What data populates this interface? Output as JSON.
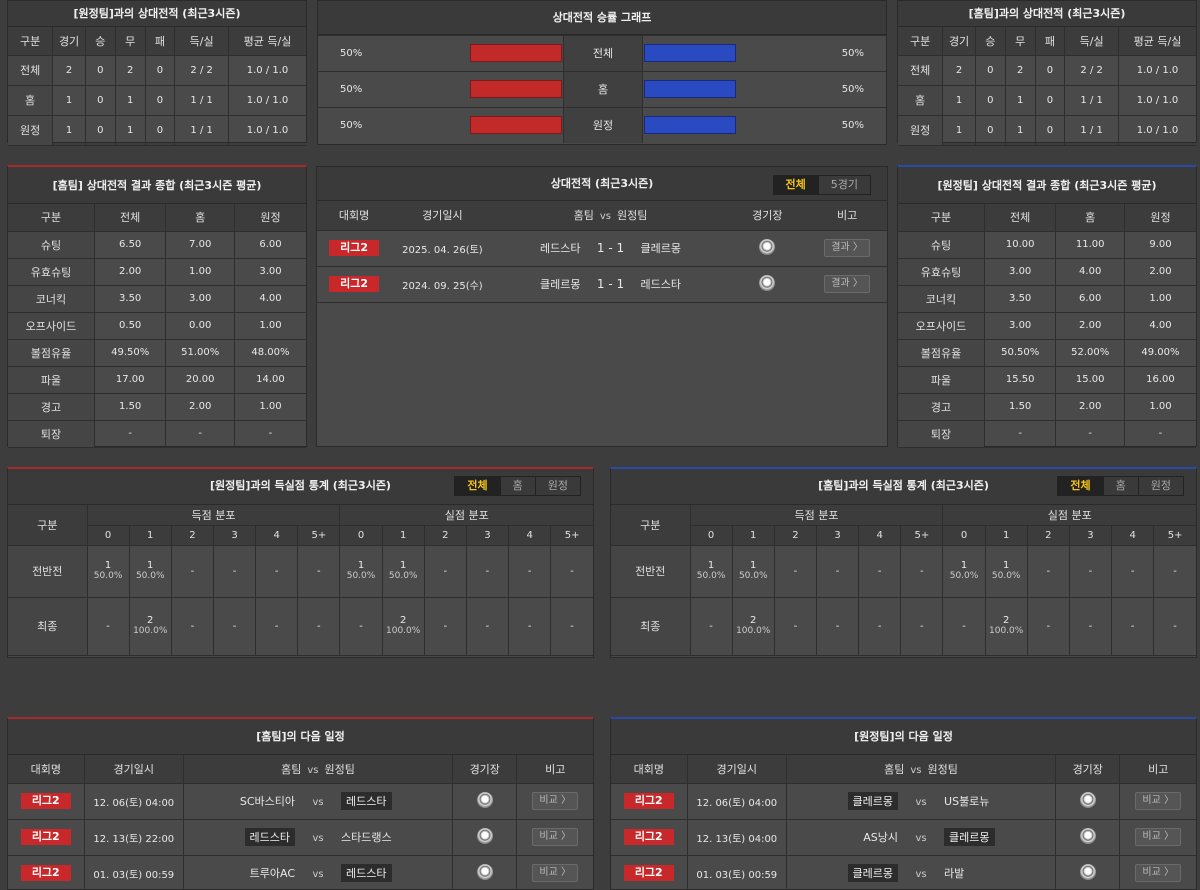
{
  "away_h2h": {
    "title": "[원정팀]과의 상대전적 (최근3시즌)",
    "headers": [
      "구분",
      "경기",
      "승",
      "무",
      "패",
      "득/실",
      "평균 득/실"
    ],
    "rows": [
      [
        "전체",
        "2",
        "0",
        "2",
        "0",
        "2 / 2",
        "1.0 / 1.0"
      ],
      [
        "홈",
        "1",
        "0",
        "1",
        "0",
        "1 / 1",
        "1.0 / 1.0"
      ],
      [
        "원정",
        "1",
        "0",
        "1",
        "0",
        "1 / 1",
        "1.0 / 1.0"
      ]
    ]
  },
  "graph": {
    "title": "상대전적 승률 그래프",
    "rows": [
      {
        "label": "전체",
        "left": "50%",
        "right": "50%",
        "left_value": 50,
        "right_value": 50
      },
      {
        "label": "홈",
        "left": "50%",
        "right": "50%",
        "left_value": 50,
        "right_value": 50
      },
      {
        "label": "원정",
        "left": "50%",
        "right": "50%",
        "left_value": 50,
        "right_value": 50
      }
    ]
  },
  "home_h2h": {
    "title": "[홈팀]과의 상대전적 (최근3시즌)",
    "headers": [
      "구분",
      "경기",
      "승",
      "무",
      "패",
      "득/실",
      "평균 득/실"
    ],
    "rows": [
      [
        "전체",
        "2",
        "0",
        "2",
        "0",
        "2 / 2",
        "1.0 / 1.0"
      ],
      [
        "홈",
        "1",
        "0",
        "1",
        "0",
        "1 / 1",
        "1.0 / 1.0"
      ],
      [
        "원정",
        "1",
        "0",
        "1",
        "0",
        "1 / 1",
        "1.0 / 1.0"
      ]
    ]
  },
  "home_summary": {
    "title": "[홈팀] 상대전적 결과 종합 (최근3시즌 평균)",
    "headers": [
      "구분",
      "전체",
      "홈",
      "원정"
    ],
    "rows": [
      [
        "슈팅",
        "6.50",
        "7.00",
        "6.00"
      ],
      [
        "유효슈팅",
        "2.00",
        "1.00",
        "3.00"
      ],
      [
        "코너킥",
        "3.50",
        "3.00",
        "4.00"
      ],
      [
        "오프사이드",
        "0.50",
        "0.00",
        "1.00"
      ],
      [
        "볼점유율",
        "49.50%",
        "51.00%",
        "48.00%"
      ],
      [
        "파울",
        "17.00",
        "20.00",
        "14.00"
      ],
      [
        "경고",
        "1.50",
        "2.00",
        "1.00"
      ],
      [
        "퇴장",
        "-",
        "-",
        "-"
      ]
    ]
  },
  "h2h_matches": {
    "title": "상대전적 (최근3시즌)",
    "tabs": [
      "전체",
      "5경기"
    ],
    "headers": {
      "league": "대회명",
      "date": "경기일시",
      "home": "홈팀",
      "vs": "vs",
      "away": "원정팀",
      "stadium": "경기장",
      "note": "비고"
    },
    "rows": [
      {
        "league": "리그2",
        "date": "2025. 04. 26(토)",
        "home": "레드스타",
        "score": "1 - 1",
        "away": "클레르몽",
        "btn": "결과 〉"
      },
      {
        "league": "리그2",
        "date": "2024. 09. 25(수)",
        "home": "클레르몽",
        "score": "1 - 1",
        "away": "레드스타",
        "btn": "결과 〉"
      }
    ]
  },
  "away_summary": {
    "title": "[원정팀] 상대전적 결과 종합 (최근3시즌 평균)",
    "headers": [
      "구분",
      "전체",
      "홈",
      "원정"
    ],
    "rows": [
      [
        "슈팅",
        "10.00",
        "11.00",
        "9.00"
      ],
      [
        "유효슈팅",
        "3.00",
        "4.00",
        "2.00"
      ],
      [
        "코너킥",
        "3.50",
        "6.00",
        "1.00"
      ],
      [
        "오프사이드",
        "3.00",
        "2.00",
        "4.00"
      ],
      [
        "볼점유율",
        "50.50%",
        "52.00%",
        "49.00%"
      ],
      [
        "파울",
        "15.50",
        "15.00",
        "16.00"
      ],
      [
        "경고",
        "1.50",
        "2.00",
        "1.00"
      ],
      [
        "퇴장",
        "-",
        "-",
        "-"
      ]
    ]
  },
  "left_goals": {
    "title": "[원정팀]과의 득실점 통계 (최근3시즌)",
    "tabs": [
      "전체",
      "홈",
      "원정"
    ],
    "label": "구분",
    "scored": "득점 분포",
    "conceded": "실점 분포",
    "cols": [
      "0",
      "1",
      "2",
      "3",
      "4",
      "5+"
    ],
    "rows": [
      {
        "label": "전반전",
        "scored": [
          [
            "1",
            "50.0%"
          ],
          [
            "1",
            "50.0%"
          ],
          [
            "-",
            ""
          ],
          [
            "-",
            ""
          ],
          [
            "-",
            ""
          ],
          [
            "-",
            ""
          ]
        ],
        "conceded": [
          [
            "1",
            "50.0%"
          ],
          [
            "1",
            "50.0%"
          ],
          [
            "-",
            ""
          ],
          [
            "-",
            ""
          ],
          [
            "-",
            ""
          ],
          [
            "-",
            ""
          ]
        ]
      },
      {
        "label": "최종",
        "scored": [
          [
            "-",
            ""
          ],
          [
            "2",
            "100.0%"
          ],
          [
            "-",
            ""
          ],
          [
            "-",
            ""
          ],
          [
            "-",
            ""
          ],
          [
            "-",
            ""
          ]
        ],
        "conceded": [
          [
            "-",
            ""
          ],
          [
            "2",
            "100.0%"
          ],
          [
            "-",
            ""
          ],
          [
            "-",
            ""
          ],
          [
            "-",
            ""
          ],
          [
            "-",
            ""
          ]
        ]
      }
    ]
  },
  "right_goals": {
    "title": "[홈팀]과의 득실점 통계 (최근3시즌)",
    "tabs": [
      "전체",
      "홈",
      "원정"
    ],
    "label": "구분",
    "scored": "득점 분포",
    "conceded": "실점 분포",
    "cols": [
      "0",
      "1",
      "2",
      "3",
      "4",
      "5+"
    ],
    "rows": [
      {
        "label": "전반전",
        "scored": [
          [
            "1",
            "50.0%"
          ],
          [
            "1",
            "50.0%"
          ],
          [
            "-",
            ""
          ],
          [
            "-",
            ""
          ],
          [
            "-",
            ""
          ],
          [
            "-",
            ""
          ]
        ],
        "conceded": [
          [
            "1",
            "50.0%"
          ],
          [
            "1",
            "50.0%"
          ],
          [
            "-",
            ""
          ],
          [
            "-",
            ""
          ],
          [
            "-",
            ""
          ],
          [
            "-",
            ""
          ]
        ]
      },
      {
        "label": "최종",
        "scored": [
          [
            "-",
            ""
          ],
          [
            "2",
            "100.0%"
          ],
          [
            "-",
            ""
          ],
          [
            "-",
            ""
          ],
          [
            "-",
            ""
          ],
          [
            "-",
            ""
          ]
        ],
        "conceded": [
          [
            "-",
            ""
          ],
          [
            "2",
            "100.0%"
          ],
          [
            "-",
            ""
          ],
          [
            "-",
            ""
          ],
          [
            "-",
            ""
          ],
          [
            "-",
            ""
          ]
        ]
      }
    ]
  },
  "home_next": {
    "title": "[홈팀]의 다음 일정",
    "headers": {
      "league": "대회명",
      "date": "경기일시",
      "home": "홈팀",
      "vs": "vs",
      "away": "원정팀",
      "stadium": "경기장",
      "note": "비고"
    },
    "rows": [
      {
        "league": "리그2",
        "date": "12. 06(토) 04:00",
        "home": "SC바스티아",
        "away": "레드스타",
        "hl": "away",
        "btn": "비교 〉"
      },
      {
        "league": "리그2",
        "date": "12. 13(토) 22:00",
        "home": "레드스타",
        "away": "스타드랭스",
        "hl": "home",
        "btn": "비교 〉"
      },
      {
        "league": "리그2",
        "date": "01. 03(토) 00:59",
        "home": "트루아AC",
        "away": "레드스타",
        "hl": "away",
        "btn": "비교 〉"
      }
    ]
  },
  "away_next": {
    "title": "[원정팀]의 다음 일정",
    "headers": {
      "league": "대회명",
      "date": "경기일시",
      "home": "홈팀",
      "vs": "vs",
      "away": "원정팀",
      "stadium": "경기장",
      "note": "비고"
    },
    "rows": [
      {
        "league": "리그2",
        "date": "12. 06(토) 04:00",
        "home": "클레르몽",
        "away": "US불로뉴",
        "hl": "home",
        "btn": "비교 〉"
      },
      {
        "league": "리그2",
        "date": "12. 13(토) 04:00",
        "home": "AS낭시",
        "away": "클레르몽",
        "hl": "away",
        "btn": "비교 〉"
      },
      {
        "league": "리그2",
        "date": "01. 03(토) 00:59",
        "home": "클레르몽",
        "away": "라발",
        "hl": "home",
        "btn": "비교 〉"
      }
    ]
  },
  "vs_word": "vs",
  "colors": {
    "red": "#c22a2a",
    "blue": "#2a4ac2",
    "badge": "#c9282a",
    "active_tab": "#f5c518"
  }
}
